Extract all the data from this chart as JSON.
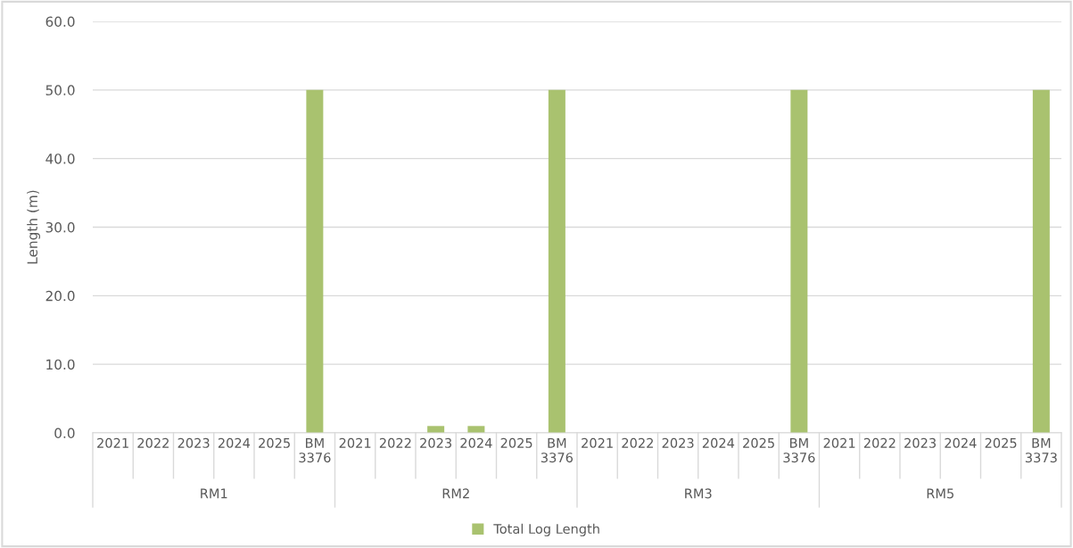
{
  "chart_data": {
    "type": "bar",
    "ylabel": "Length (m)",
    "categories": [
      "2021",
      "2022",
      "2023",
      "2024",
      "2025",
      "BM 3376",
      "2021",
      "2022",
      "2023",
      "2024",
      "2025",
      "BM 3376",
      "2021",
      "2022",
      "2023",
      "2024",
      "2025",
      "BM 3376",
      "2021",
      "2022",
      "2023",
      "2024",
      "2025",
      "BM 3373"
    ],
    "series": [
      {
        "name": "Total Log Length",
        "color": "#a9c26f",
        "values": [
          null,
          null,
          null,
          null,
          null,
          50,
          null,
          null,
          1.0,
          1.0,
          null,
          50,
          null,
          null,
          null,
          null,
          null,
          50,
          null,
          null,
          null,
          null,
          null,
          50
        ]
      }
    ],
    "annotations": [
      "RM1",
      "RM2",
      "RM3",
      "RM5"
    ],
    "ylim": [
      0,
      60
    ],
    "yticks": [
      {
        "value": 0,
        "label": "0.0"
      },
      {
        "value": 10,
        "label": "10.0"
      },
      {
        "value": 20,
        "label": "20.0"
      },
      {
        "value": 30,
        "label": "30.0"
      },
      {
        "value": 40,
        "label": "40.0"
      },
      {
        "value": 50,
        "label": "50.0"
      },
      {
        "value": 60,
        "label": "60.0"
      }
    ],
    "grid": "y",
    "legend": "bottom"
  }
}
